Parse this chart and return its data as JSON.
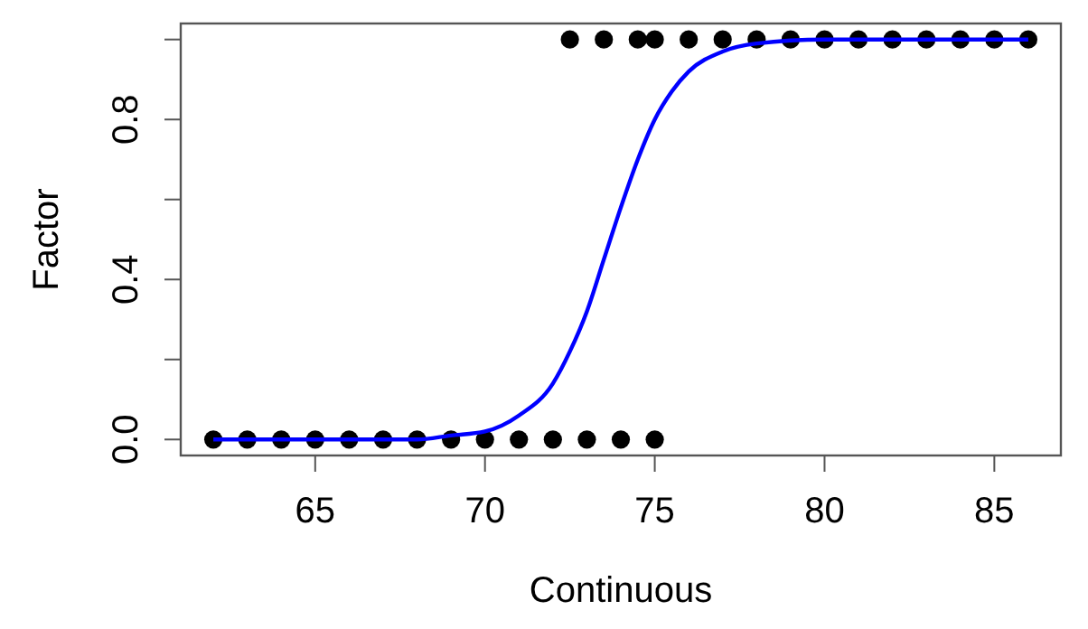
{
  "chart_data": {
    "type": "scatter",
    "xlabel": "Continuous",
    "ylabel": "Factor",
    "xlim": [
      61.04,
      86.96
    ],
    "ylim": [
      -0.04,
      1.04
    ],
    "xticks": [
      65,
      70,
      75,
      80,
      85
    ],
    "yticks": [
      {
        "value": 0,
        "label": "0.0"
      },
      {
        "value": 0.2,
        "label": null
      },
      {
        "value": 0.4,
        "label": "0.4"
      },
      {
        "value": 0.6,
        "label": null
      },
      {
        "value": 0.8,
        "label": "0.8"
      },
      {
        "value": 1.0,
        "label": null
      }
    ],
    "grid": false,
    "series": [
      {
        "marker": "circle",
        "color": "#000000",
        "x": [
          62,
          63,
          64,
          65,
          66,
          67,
          68,
          69,
          70,
          71,
          72,
          73,
          74,
          75,
          72.5,
          73.5,
          74.5,
          75,
          76,
          77,
          78,
          79,
          80,
          81,
          82,
          83,
          84,
          85,
          86
        ],
        "values": [
          0,
          0,
          0,
          0,
          0,
          0,
          0,
          0,
          0,
          0,
          0,
          0,
          0,
          0,
          1,
          1,
          1,
          1,
          1,
          1,
          1,
          1,
          1,
          1,
          1,
          1,
          1,
          1,
          1
        ]
      },
      {
        "type": "line",
        "color": "#0000ff",
        "line_style": "solid",
        "x": [
          62,
          64,
          66,
          68,
          69,
          70,
          71,
          72,
          72.5,
          73,
          73.5,
          74,
          74.5,
          75,
          75.5,
          76,
          77,
          78,
          80,
          82,
          86
        ],
        "values": [
          0,
          0,
          0,
          0,
          0.01,
          0.02,
          0.06,
          0.14,
          0.22,
          0.32,
          0.45,
          0.58,
          0.7,
          0.8,
          0.87,
          0.92,
          0.97,
          0.99,
          1,
          1,
          1
        ]
      }
    ]
  }
}
